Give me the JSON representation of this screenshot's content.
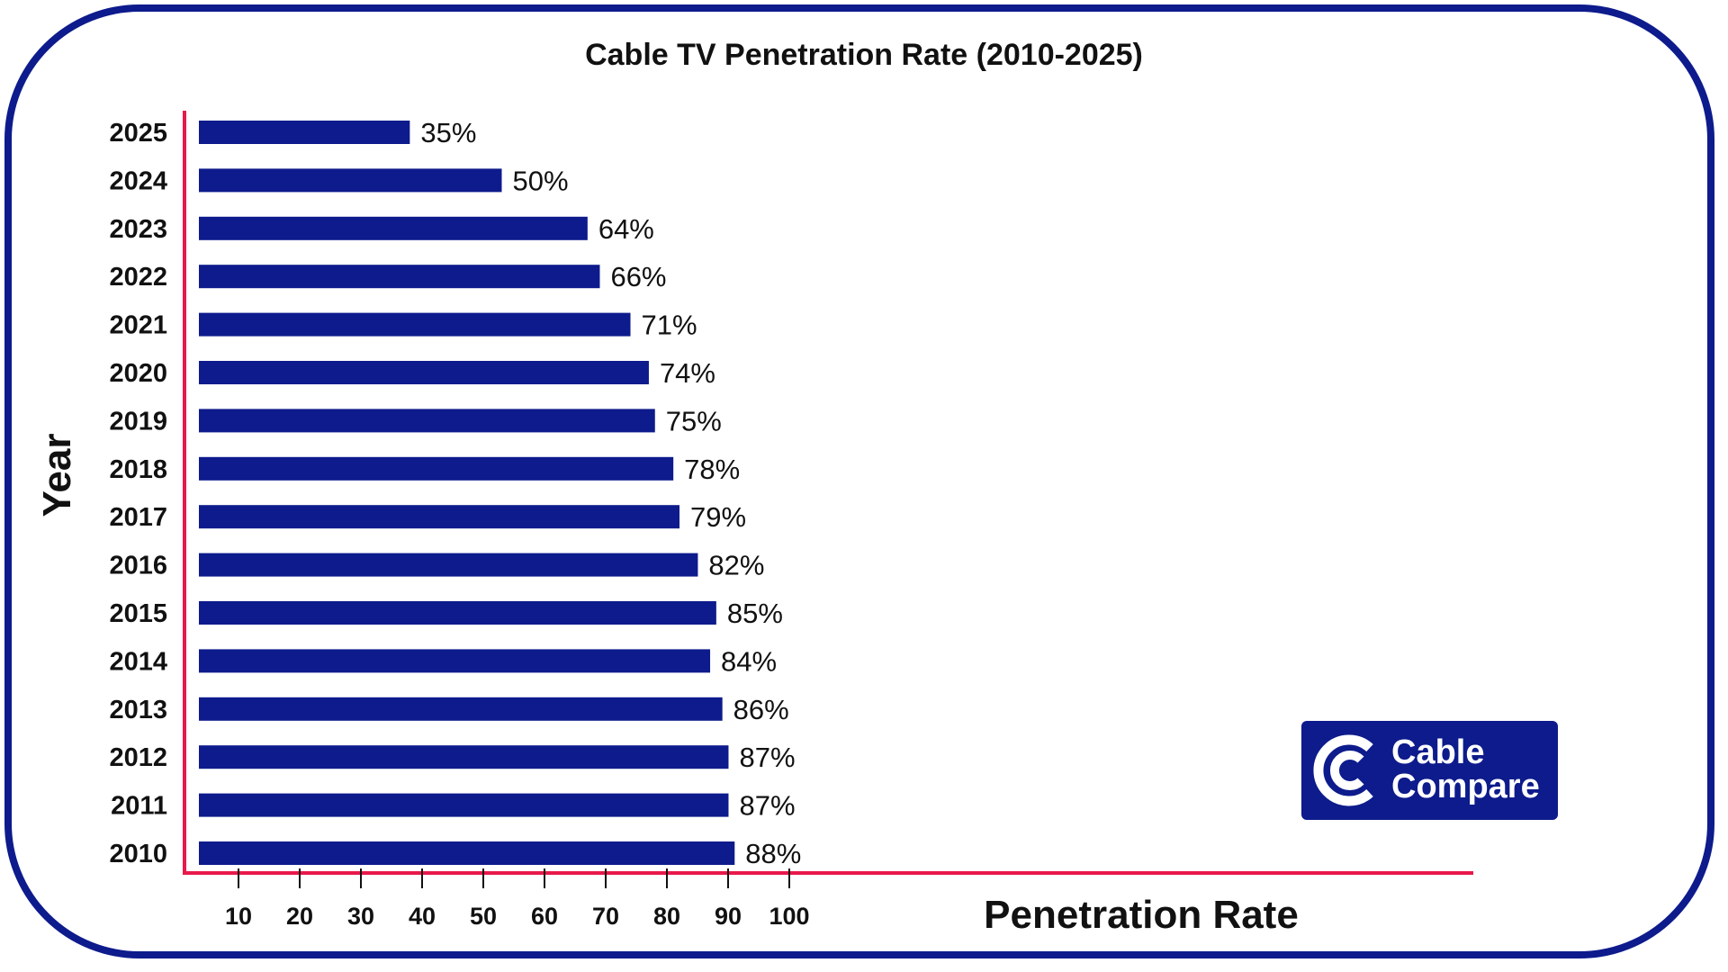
{
  "colors": {
    "frame": "#0d1b8c",
    "bar": "#0d1b8c",
    "axis": "#e8194b",
    "text": "#111111",
    "logo_bg": "#0d1b8c",
    "logo_fg": "#ffffff"
  },
  "logo": {
    "icon": "cable-compare-c-icon",
    "line1": "Cable",
    "line2": "Compare"
  },
  "chart_data": {
    "type": "bar",
    "orientation": "horizontal",
    "title": "Cable TV Penetration Rate (2010-2025)",
    "xlabel": "Penetration Rate",
    "ylabel": "Year",
    "categories": [
      "2025",
      "2024",
      "2023",
      "2022",
      "2021",
      "2020",
      "2019",
      "2018",
      "2017",
      "2016",
      "2015",
      "2014",
      "2013",
      "2012",
      "2011",
      "2010"
    ],
    "values": [
      35,
      50,
      64,
      66,
      71,
      74,
      75,
      78,
      79,
      82,
      85,
      84,
      86,
      87,
      87,
      88
    ],
    "data_labels": [
      "35%",
      "50%",
      "64%",
      "66%",
      "71%",
      "74%",
      "75%",
      "78%",
      "79%",
      "82%",
      "85%",
      "84%",
      "86%",
      "87%",
      "87%",
      "88%"
    ],
    "x_ticks": [
      10,
      20,
      30,
      40,
      50,
      60,
      70,
      80,
      90,
      100
    ],
    "grid": false,
    "legend": "none"
  }
}
